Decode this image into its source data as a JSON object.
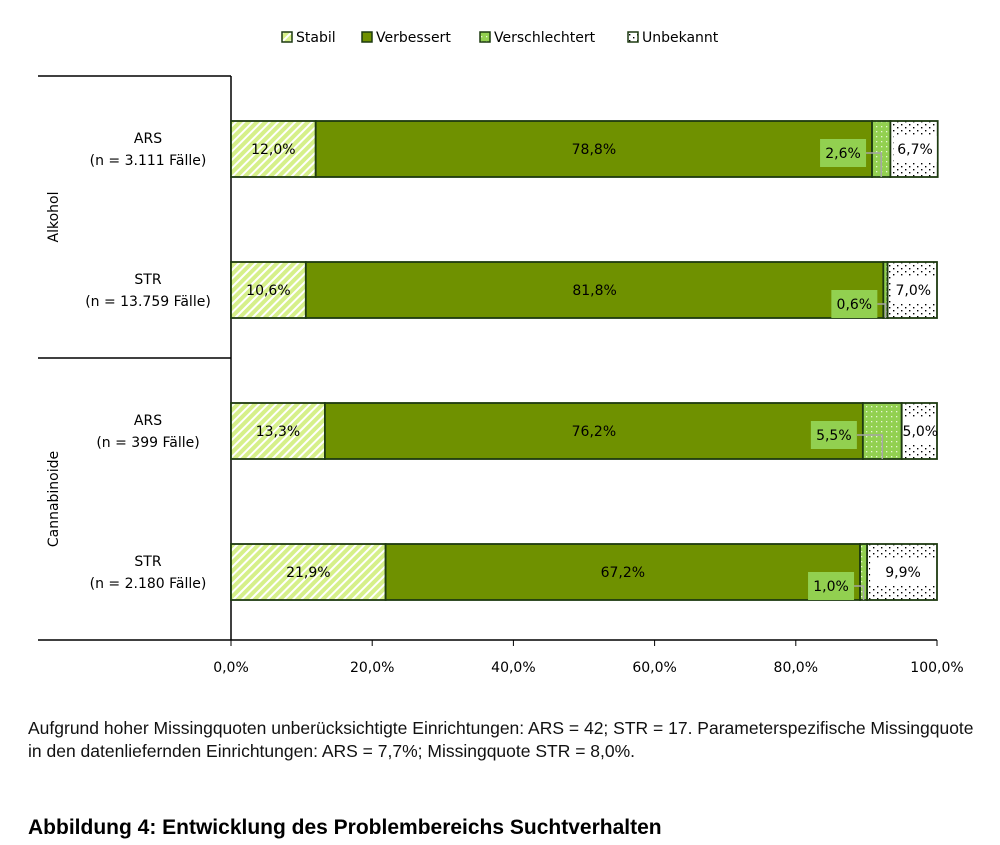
{
  "chart_data": {
    "type": "bar",
    "orientation": "horizontal-stacked-100",
    "legend": [
      "Stabil",
      "Verbessert",
      "Verschlechtert",
      "Unbekannt"
    ],
    "legend_position": "top",
    "groups": [
      {
        "name": "Alkohol",
        "rows": [
          {
            "label": "ARS",
            "n": "(n = 3.111 Fälle)",
            "values": [
              12.0,
              78.8,
              2.6,
              6.7
            ],
            "labels": [
              "12,0%",
              "78,8%",
              "2,6%",
              "6,7%"
            ]
          },
          {
            "label": "STR",
            "n": "(n = 13.759 Fälle)",
            "values": [
              10.6,
              81.8,
              0.6,
              7.0
            ],
            "labels": [
              "10,6%",
              "81,8%",
              "0,6%",
              "7,0%"
            ]
          }
        ]
      },
      {
        "name": "Cannabinoide",
        "rows": [
          {
            "label": "ARS",
            "n": "(n = 399 Fälle)",
            "values": [
              13.3,
              76.2,
              5.5,
              5.0
            ],
            "labels": [
              "13,3%",
              "76,2%",
              "5,5%",
              "5,0%"
            ]
          },
          {
            "label": "STR",
            "n": "(n = 2.180 Fälle)",
            "values": [
              21.9,
              67.2,
              1.0,
              9.9
            ],
            "labels": [
              "21,9%",
              "67,2%",
              "1,0%",
              "9,9%"
            ]
          }
        ]
      }
    ],
    "xlim": [
      0,
      100
    ],
    "xticks": [
      "0,0%",
      "20,0%",
      "40,0%",
      "60,0%",
      "80,0%",
      "100,0%"
    ],
    "colors": {
      "stabil": "#d6f08a",
      "verbessert": "#6f9100",
      "verschlechtert": "#92d050",
      "unbekannt": "#ffffff",
      "border": "#1d3a10"
    }
  },
  "note": "Aufgrund hoher Missingquoten unberücksichtigte Einrichtungen: ARS = 42; STR = 17. Parameterspezifische Missingquote in den datenliefernden Einrichtungen: ARS = 7,7%; Missingquote STR = 8,0%.",
  "title": "Abbildung 4: Entwicklung des Problembereichs Suchtverhalten"
}
